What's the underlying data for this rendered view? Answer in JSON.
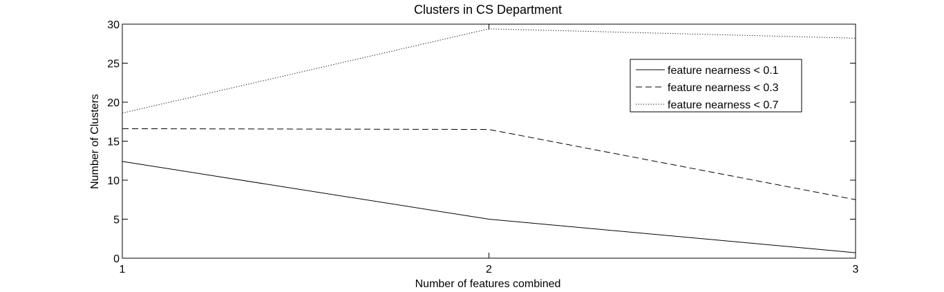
{
  "chart_data": {
    "type": "line",
    "title": "Clusters in CS Department",
    "xlabel": "Number of features combined",
    "ylabel": "Number of Clusters",
    "x": [
      1,
      2,
      3
    ],
    "xlim": [
      1,
      3
    ],
    "ylim": [
      0,
      30
    ],
    "xticks": [
      "1",
      "2",
      "3"
    ],
    "yticks": [
      "0",
      "5",
      "10",
      "15",
      "20",
      "25",
      "30"
    ],
    "grid": false,
    "legend_position": "top-right",
    "series": [
      {
        "name": "feature nearness < 0.1",
        "line_style": "solid",
        "color": "#000000",
        "values": [
          12.4,
          5.0,
          0.7
        ]
      },
      {
        "name": "feature nearness < 0.3",
        "line_style": "dashed",
        "color": "#000000",
        "values": [
          16.6,
          16.5,
          7.5
        ]
      },
      {
        "name": "feature nearness < 0.7",
        "line_style": "dotted",
        "color": "#000000",
        "values": [
          18.6,
          29.4,
          28.2
        ]
      }
    ]
  }
}
